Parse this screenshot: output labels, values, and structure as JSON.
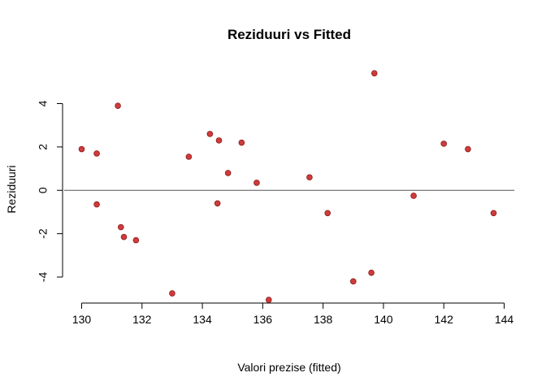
{
  "chart_data": {
    "type": "scatter",
    "title": "Reziduuri vs Fitted",
    "xlabel": "Valori prezise (fitted)",
    "ylabel": "Reziduuri",
    "xlim": [
      129.9,
      144.1
    ],
    "ylim": [
      -5.4,
      5.6
    ],
    "xticks": [
      130,
      132,
      134,
      136,
      138,
      140,
      142,
      144
    ],
    "yticks": [
      -4,
      -2,
      0,
      2,
      4
    ],
    "reference_line_y": 0,
    "point_color": "#d03b3b",
    "point_edge": "#8b1a1a",
    "points": [
      {
        "x": 130.0,
        "y": 1.9
      },
      {
        "x": 130.5,
        "y": 1.7
      },
      {
        "x": 130.5,
        "y": -0.65
      },
      {
        "x": 131.2,
        "y": 3.9
      },
      {
        "x": 131.3,
        "y": -1.7
      },
      {
        "x": 131.4,
        "y": -2.15
      },
      {
        "x": 131.8,
        "y": -2.3
      },
      {
        "x": 133.0,
        "y": -4.75
      },
      {
        "x": 133.55,
        "y": 1.55
      },
      {
        "x": 134.25,
        "y": 2.6
      },
      {
        "x": 134.5,
        "y": -0.6
      },
      {
        "x": 134.55,
        "y": 2.3
      },
      {
        "x": 134.85,
        "y": 0.8
      },
      {
        "x": 135.3,
        "y": 2.2
      },
      {
        "x": 135.8,
        "y": 0.35
      },
      {
        "x": 136.2,
        "y": -5.05
      },
      {
        "x": 137.55,
        "y": 0.6
      },
      {
        "x": 138.15,
        "y": -1.05
      },
      {
        "x": 139.0,
        "y": -4.2
      },
      {
        "x": 139.6,
        "y": -3.8
      },
      {
        "x": 139.7,
        "y": 5.4
      },
      {
        "x": 141.0,
        "y": -0.25
      },
      {
        "x": 142.0,
        "y": 2.15
      },
      {
        "x": 142.8,
        "y": 1.9
      },
      {
        "x": 143.65,
        "y": -1.05
      }
    ]
  }
}
